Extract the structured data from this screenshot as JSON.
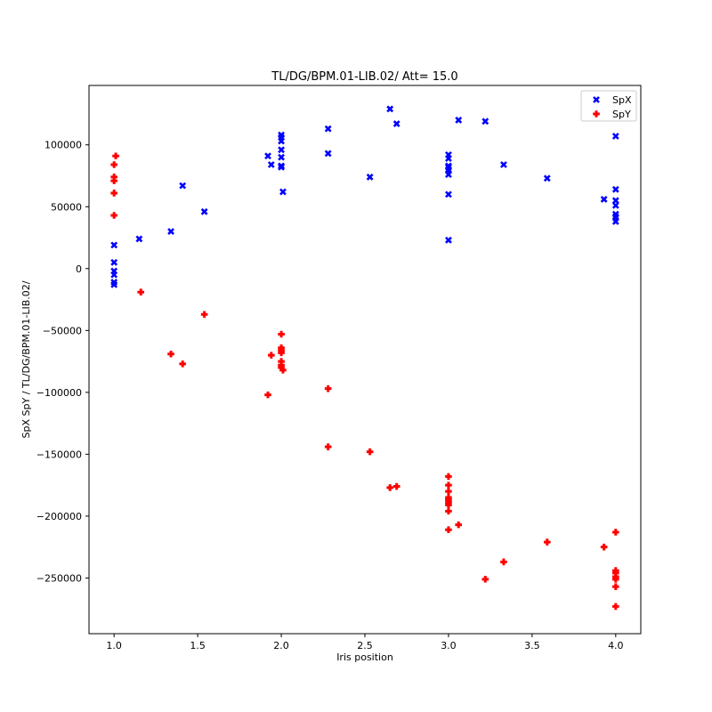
{
  "chart_data": {
    "type": "scatter",
    "title": "TL/DG/BPM.01-LIB.02/ Att= 15.0",
    "xlabel": "Iris position",
    "ylabel": "SpX SpY / TL/DG/BPM.01-LIB.02/",
    "xlim": [
      0.85,
      4.15
    ],
    "ylim": [
      -295000,
      148000
    ],
    "xticks": [
      1.0,
      1.5,
      2.0,
      2.5,
      3.0,
      3.5,
      4.0
    ],
    "xtick_labels": [
      "1.0",
      "1.5",
      "2.0",
      "2.5",
      "3.0",
      "3.5",
      "4.0"
    ],
    "yticks": [
      -250000,
      -200000,
      -150000,
      -100000,
      -50000,
      0,
      50000,
      100000
    ],
    "ytick_labels": [
      "−250000",
      "−200000",
      "−150000",
      "−100000",
      "−50000",
      "0",
      "50000",
      "100000"
    ],
    "grid": false,
    "legend_position": "top-right",
    "series": [
      {
        "name": "SpX",
        "color": "#0000ff",
        "marker": "x",
        "points": [
          [
            1.0,
            19000
          ],
          [
            1.0,
            5000
          ],
          [
            1.0,
            -2000
          ],
          [
            1.0,
            -5000
          ],
          [
            1.0,
            -11000
          ],
          [
            1.0,
            -13000
          ],
          [
            1.15,
            24000
          ],
          [
            1.34,
            30000
          ],
          [
            1.41,
            67000
          ],
          [
            1.54,
            46000
          ],
          [
            1.92,
            91000
          ],
          [
            1.94,
            84000
          ],
          [
            2.0,
            108000
          ],
          [
            2.0,
            106000
          ],
          [
            2.0,
            103000
          ],
          [
            2.0,
            96000
          ],
          [
            2.0,
            90000
          ],
          [
            2.0,
            83000
          ],
          [
            2.0,
            82000
          ],
          [
            2.01,
            62000
          ],
          [
            2.28,
            113000
          ],
          [
            2.28,
            93000
          ],
          [
            2.53,
            74000
          ],
          [
            2.65,
            129000
          ],
          [
            2.69,
            117000
          ],
          [
            3.0,
            92000
          ],
          [
            3.0,
            89000
          ],
          [
            3.0,
            83000
          ],
          [
            3.0,
            82000
          ],
          [
            3.0,
            80000
          ],
          [
            3.0,
            79000
          ],
          [
            3.0,
            76000
          ],
          [
            3.0,
            60000
          ],
          [
            3.0,
            23000
          ],
          [
            3.06,
            120000
          ],
          [
            3.22,
            119000
          ],
          [
            3.33,
            84000
          ],
          [
            3.59,
            73000
          ],
          [
            3.93,
            56000
          ],
          [
            4.0,
            107000
          ],
          [
            4.0,
            64000
          ],
          [
            4.0,
            55000
          ],
          [
            4.0,
            51000
          ],
          [
            4.0,
            44000
          ],
          [
            4.0,
            42000
          ],
          [
            4.0,
            41000
          ],
          [
            4.0,
            38000
          ]
        ]
      },
      {
        "name": "SpY",
        "color": "#ff0000",
        "marker": "P",
        "points": [
          [
            1.01,
            91000
          ],
          [
            1.0,
            84000
          ],
          [
            1.0,
            74000
          ],
          [
            1.0,
            71000
          ],
          [
            1.0,
            61000
          ],
          [
            1.0,
            43000
          ],
          [
            1.16,
            -19000
          ],
          [
            1.54,
            -37000
          ],
          [
            1.34,
            -69000
          ],
          [
            1.41,
            -77000
          ],
          [
            1.92,
            -102000
          ],
          [
            1.94,
            -70000
          ],
          [
            2.0,
            -53000
          ],
          [
            2.0,
            -64000
          ],
          [
            2.0,
            -66000
          ],
          [
            2.0,
            -68000
          ],
          [
            2.0,
            -75000
          ],
          [
            2.0,
            -78000
          ],
          [
            2.0,
            -80000
          ],
          [
            2.01,
            -82000
          ],
          [
            2.28,
            -97000
          ],
          [
            2.28,
            -144000
          ],
          [
            2.53,
            -148000
          ],
          [
            2.65,
            -177000
          ],
          [
            2.69,
            -176000
          ],
          [
            3.0,
            -168000
          ],
          [
            3.0,
            -175000
          ],
          [
            3.0,
            -180000
          ],
          [
            3.0,
            -185000
          ],
          [
            3.0,
            -187000
          ],
          [
            3.0,
            -189000
          ],
          [
            3.0,
            -191000
          ],
          [
            3.0,
            -196000
          ],
          [
            3.0,
            -211000
          ],
          [
            3.06,
            -207000
          ],
          [
            3.22,
            -251000
          ],
          [
            3.33,
            -237000
          ],
          [
            3.59,
            -221000
          ],
          [
            3.93,
            -225000
          ],
          [
            4.0,
            -213000
          ],
          [
            4.0,
            -244000
          ],
          [
            4.0,
            -246000
          ],
          [
            4.0,
            -249000
          ],
          [
            4.0,
            -251000
          ],
          [
            4.0,
            -257000
          ],
          [
            4.0,
            -273000
          ]
        ]
      }
    ]
  }
}
